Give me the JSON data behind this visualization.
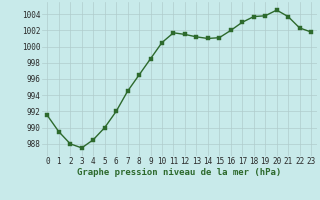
{
  "x": [
    0,
    1,
    2,
    3,
    4,
    5,
    6,
    7,
    8,
    9,
    10,
    11,
    12,
    13,
    14,
    15,
    16,
    17,
    18,
    19,
    20,
    21,
    22,
    23
  ],
  "y": [
    991.5,
    989.5,
    988.0,
    987.5,
    988.5,
    990.0,
    992.0,
    994.5,
    996.5,
    998.5,
    1000.5,
    1001.7,
    1001.5,
    1001.2,
    1001.0,
    1001.1,
    1002.0,
    1003.0,
    1003.7,
    1003.8,
    1004.5,
    1003.7,
    1002.3,
    1001.8
  ],
  "line_color": "#2d6a2d",
  "marker_color": "#2d6a2d",
  "bg_color": "#c8eaea",
  "grid_color": "#b0cccc",
  "xlabel": "Graphe pression niveau de la mer (hPa)",
  "ylim": [
    986.5,
    1005.5
  ],
  "yticks": [
    988,
    990,
    992,
    994,
    996,
    998,
    1000,
    1002,
    1004
  ],
  "xticks": [
    0,
    1,
    2,
    3,
    4,
    5,
    6,
    7,
    8,
    9,
    10,
    11,
    12,
    13,
    14,
    15,
    16,
    17,
    18,
    19,
    20,
    21,
    22,
    23
  ],
  "xlabel_fontsize": 6.5,
  "tick_fontsize": 5.5,
  "line_width": 1.0,
  "marker_size": 2.5
}
